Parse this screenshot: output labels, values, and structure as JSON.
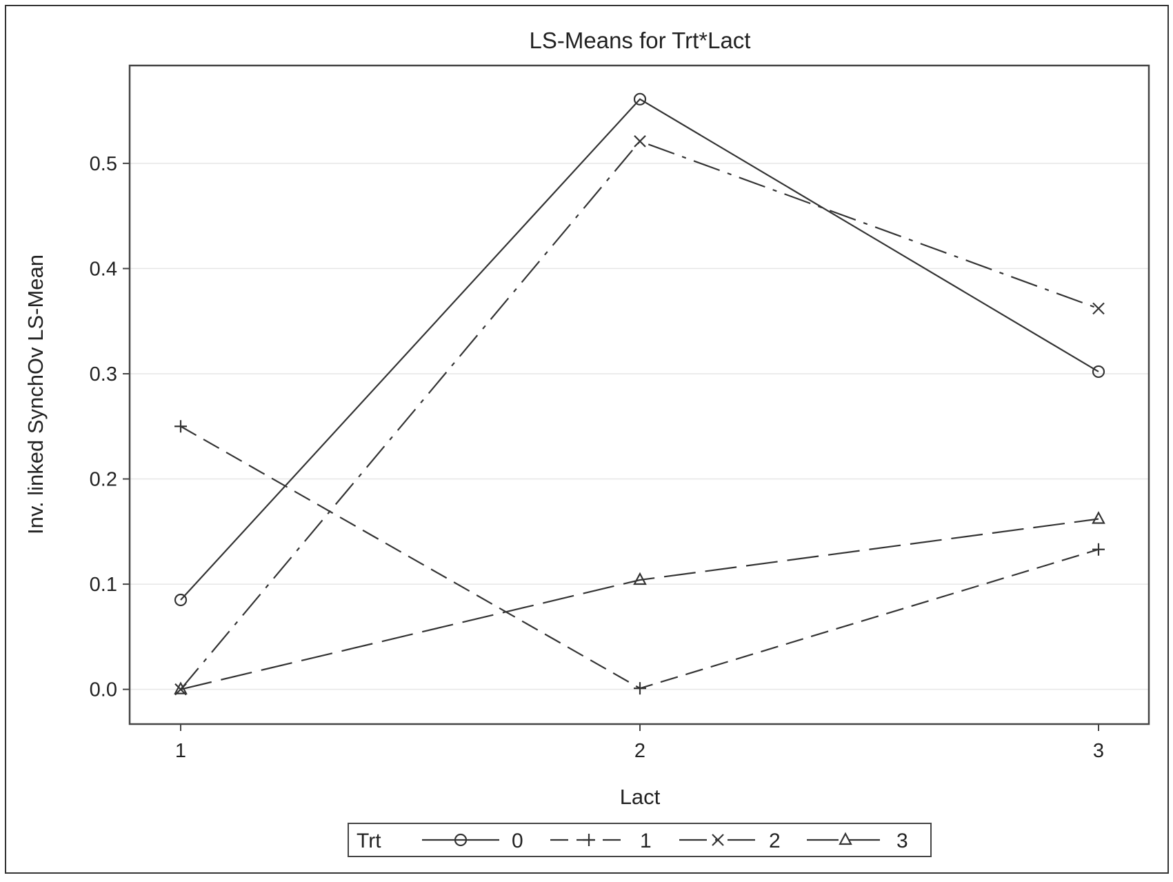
{
  "chart_data": {
    "type": "line",
    "title": "LS-Means for Trt*Lact",
    "xlabel": "Lact",
    "ylabel": "Inv. linked SynchOv LS-Mean",
    "categories": [
      "1",
      "2",
      "3"
    ],
    "x": [
      1,
      2,
      3
    ],
    "yticks": [
      "0.0",
      "0.1",
      "0.2",
      "0.3",
      "0.4",
      "0.5"
    ],
    "ylim": [
      -0.033,
      0.593
    ],
    "grid": true,
    "legend": {
      "title": "Trt",
      "placement": "bottom-center"
    },
    "series": [
      {
        "name": "0",
        "values": [
          0.085,
          0.561,
          0.302
        ],
        "marker": "circle",
        "dash": "solid"
      },
      {
        "name": "1",
        "values": [
          0.25,
          0.001,
          0.133
        ],
        "marker": "plus",
        "dash": "dash"
      },
      {
        "name": "2",
        "values": [
          0.0,
          0.521,
          0.362
        ],
        "marker": "x",
        "dash": "dashdot"
      },
      {
        "name": "3",
        "values": [
          0.0,
          0.104,
          0.162
        ],
        "marker": "triangle",
        "dash": "longdash"
      }
    ]
  }
}
